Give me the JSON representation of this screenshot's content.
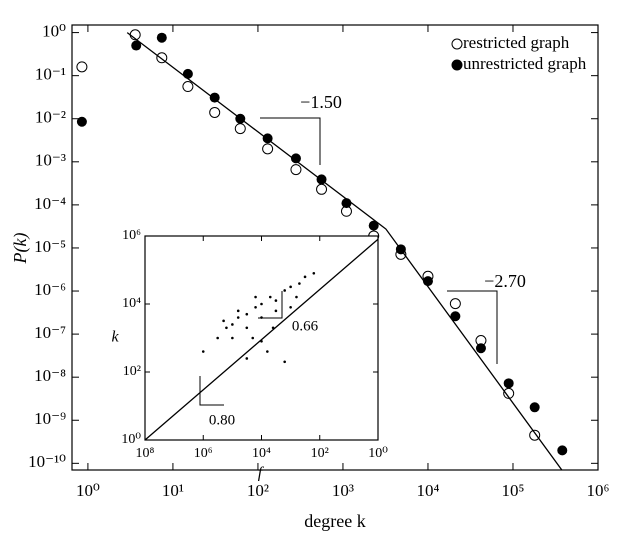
{
  "chart_data": [
    {
      "type": "scatter",
      "x_label": "degree k",
      "y_label": "P(k)",
      "log_x": true,
      "log_y": true,
      "xlim": [
        0.65,
        1000000.0
      ],
      "ylim": [
        7e-11,
        1.5
      ],
      "xticks": [
        {
          "value": 1,
          "label": "10⁰"
        },
        {
          "value": 10,
          "label": "10¹"
        },
        {
          "value": 100,
          "label": "10²"
        },
        {
          "value": 1000,
          "label": "10³"
        },
        {
          "value": 10000,
          "label": "10⁴"
        },
        {
          "value": 100000,
          "label": "10⁵"
        },
        {
          "value": 1000000,
          "label": "10⁶"
        }
      ],
      "yticks": [
        {
          "value": 1,
          "label": "10⁰"
        },
        {
          "value": 0.1,
          "label": "10⁻¹"
        },
        {
          "value": 0.01,
          "label": "10⁻²"
        },
        {
          "value": 0.001,
          "label": "10⁻³"
        },
        {
          "value": 0.0001,
          "label": "10⁻⁴"
        },
        {
          "value": 1e-05,
          "label": "10⁻⁵"
        },
        {
          "value": 1e-06,
          "label": "10⁻⁶"
        },
        {
          "value": 1e-07,
          "label": "10⁻⁷"
        },
        {
          "value": 1e-08,
          "label": "10⁻⁸"
        },
        {
          "value": 1e-09,
          "label": "10⁻⁹"
        },
        {
          "value": 1e-10,
          "label": "10⁻¹⁰"
        }
      ],
      "legend": "top-right",
      "annotations": [
        "−1.50",
        "−2.70"
      ],
      "series": [
        {
          "name": "restricted graph",
          "color": "#000000",
          "marker": "open",
          "x": [
            0.85,
            3.6,
            7.4,
            15,
            31,
            62,
            130,
            280,
            560,
            1100,
            2300,
            4800,
            10000,
            21000,
            42000,
            89000,
            180000
          ],
          "values": [
            0.16,
            0.89,
            0.26,
            0.056,
            0.014,
            0.0059,
            0.002,
            0.00066,
            0.00023,
            7.1e-05,
            1.9e-05,
            7.1e-06,
            2.2e-06,
            5.1e-07,
            7.1e-08,
            4.2e-09,
            4.5e-10
          ]
        },
        {
          "name": "unrestricted graph",
          "color": "#000000",
          "marker": "filled",
          "x": [
            0.85,
            3.7,
            7.4,
            15,
            31,
            62,
            130,
            280,
            560,
            1100,
            2300,
            4800,
            10000,
            21000,
            42000,
            89000,
            180000,
            380000
          ],
          "values": [
            0.0085,
            0.5,
            0.76,
            0.11,
            0.031,
            0.01,
            0.0035,
            0.0012,
            0.00039,
            0.00011,
            3.3e-05,
            9.3e-06,
            1.7e-06,
            2.6e-07,
            4.7e-08,
            7.2e-09,
            2e-09,
            2e-10
          ]
        },
        {
          "color": "#000000",
          "line": true,
          "x": [
            2.9,
            3200,
            400000
          ],
          "values": [
            1,
            2.75e-05,
            5.9e-11
          ]
        }
      ]
    },
    {
      "type": "scatter",
      "x_label": "f",
      "y_label": "k",
      "log_x": true,
      "log_y": true,
      "xlim": [
        100000000.0,
        1
      ],
      "ylim": [
        1,
        1000000.0
      ],
      "xticks": [
        {
          "value": 100000000.0,
          "label": "10⁸"
        },
        {
          "value": 1000000.0,
          "label": "10⁶"
        },
        {
          "value": 10000,
          "label": "10⁴"
        },
        {
          "value": 100,
          "label": "10²"
        },
        {
          "value": 1,
          "label": "10⁰"
        }
      ],
      "yticks": [
        {
          "value": 1,
          "label": "10⁰"
        },
        {
          "value": 100,
          "label": "10²"
        },
        {
          "value": 10000,
          "label": "10⁴"
        },
        {
          "value": 1000000.0,
          "label": "10⁶"
        }
      ],
      "annotations": [
        "0.80",
        "0.66"
      ],
      "series": [
        {
          "color": "#000000",
          "marker": "dot",
          "x": [
            1000000.0,
            320000.0,
            160000.0,
            100000.0,
            63000.0,
            32000.0,
            16000.0,
            10000.0,
            5000,
            3200,
            1600,
            1000,
            500,
            320,
            160,
            100000.0,
            32000.0,
            10000.0,
            3200,
            63000.0,
            16000.0,
            6300,
            32000.0,
            1600,
            4000,
            10000.0,
            630,
            200000.0,
            20000.0,
            1000
          ],
          "values": [
            400,
            1000,
            2000,
            2500,
            4000,
            5000,
            8000,
            10000,
            16000,
            12600,
            25000,
            32000,
            40000,
            63000,
            80000,
            1000,
            2000,
            4000,
            6300,
            6300,
            16000,
            400,
            250,
            200,
            2000,
            800,
            16000,
            3200,
            1000,
            8000
          ]
        },
        {
          "color": "#000000",
          "line": true,
          "x": [
            100000000.0,
            1
          ],
          "values": [
            1,
            800000
          ]
        }
      ]
    }
  ]
}
